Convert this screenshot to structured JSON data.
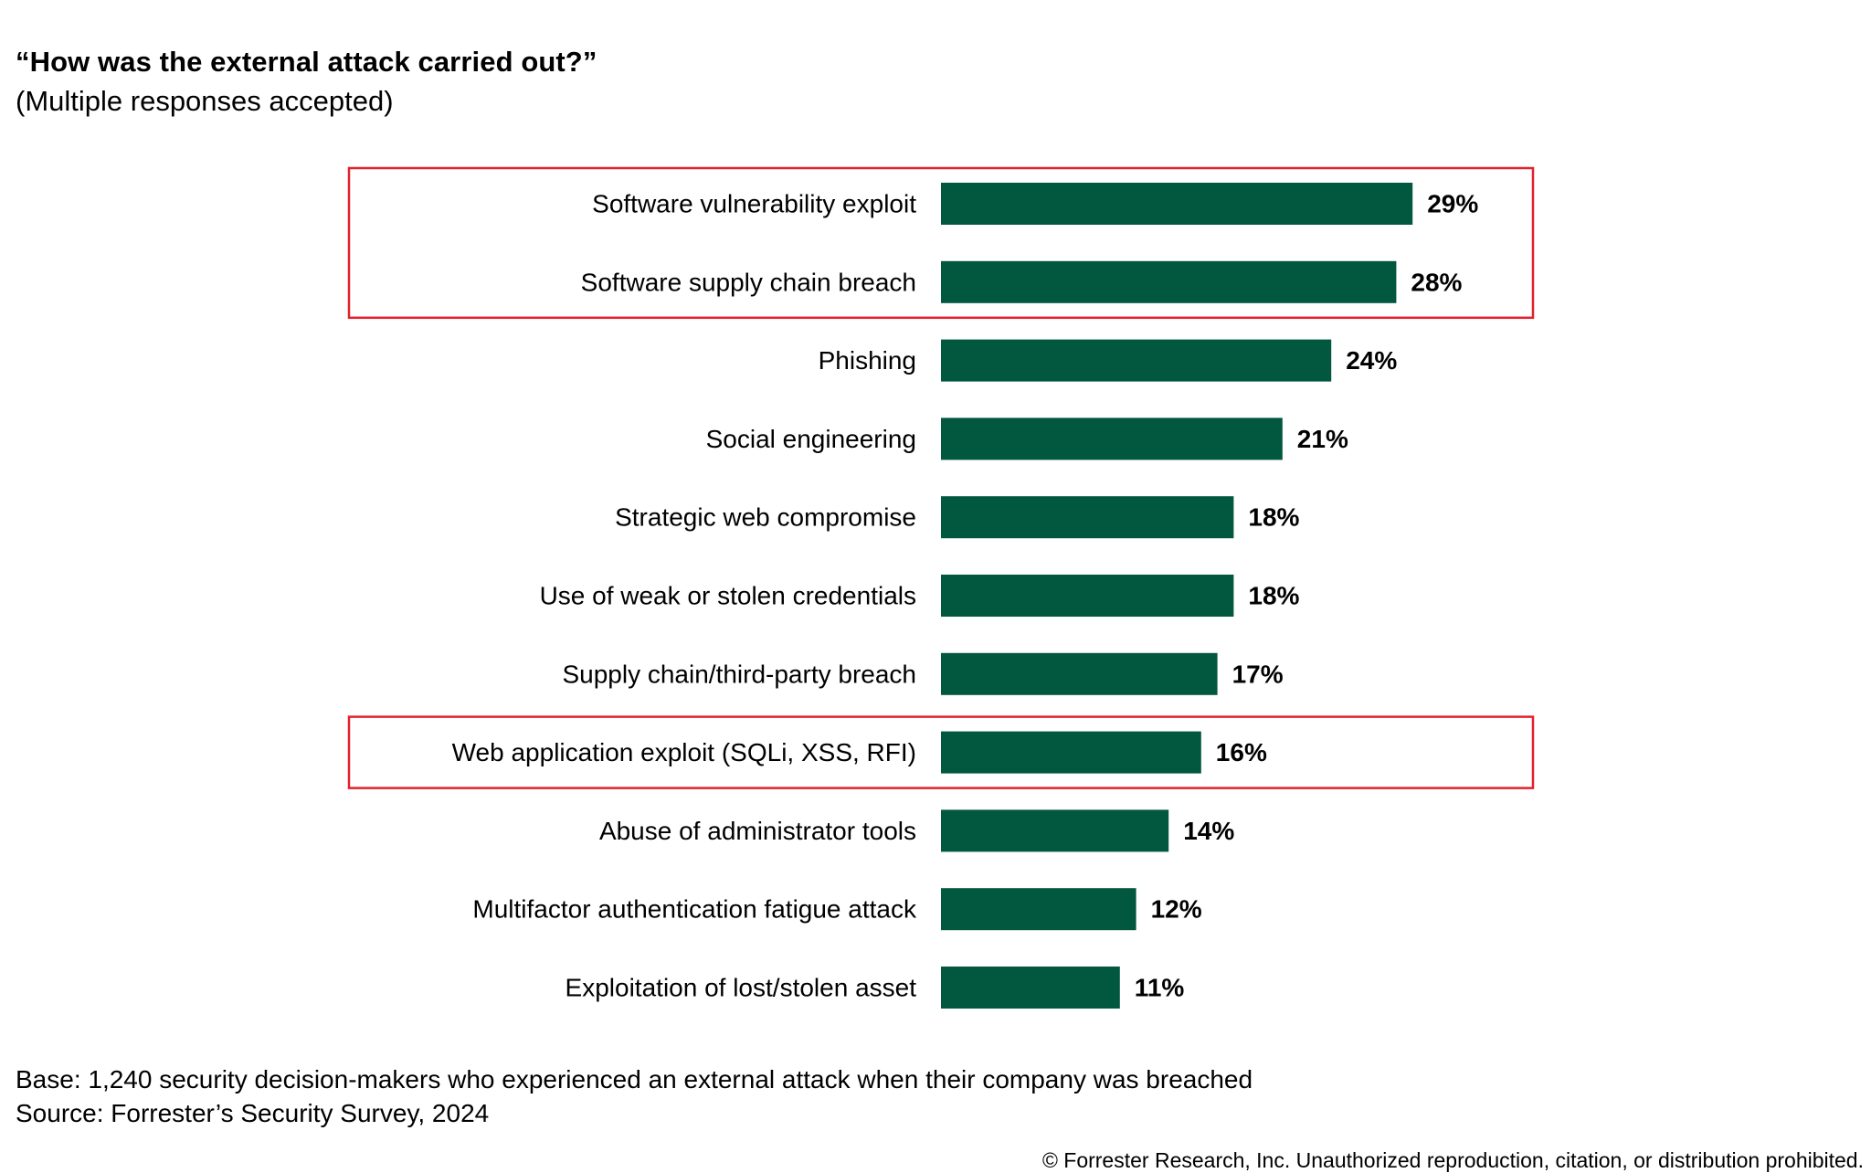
{
  "header": {
    "title": "“How was the external attack carried out?”",
    "subtitle": "(Multiple responses accepted)"
  },
  "chart_data": {
    "type": "bar",
    "orientation": "horizontal",
    "categories": [
      "Software vulnerability exploit",
      "Software supply chain breach",
      "Phishing",
      "Social engineering",
      "Strategic web compromise",
      "Use of weak or stolen credentials",
      "Supply chain/third-party breach",
      "Web application exploit (SQLi, XSS, RFI)",
      "Abuse of administrator tools",
      "Multifactor authentication fatigue attack",
      "Exploitation of lost/stolen asset"
    ],
    "values": [
      29,
      28,
      24,
      21,
      18,
      18,
      17,
      16,
      14,
      12,
      11
    ],
    "value_labels": [
      "29%",
      "28%",
      "24%",
      "21%",
      "18%",
      "18%",
      "17%",
      "16%",
      "14%",
      "12%",
      "11%"
    ],
    "unit": "%",
    "bar_color": "#02573F",
    "highlight_color": "#E3202C",
    "highlight_groups": [
      [
        0,
        1
      ],
      [
        7
      ]
    ]
  },
  "footer": {
    "base": "Base: 1,240 security decision-makers who experienced an external attack when their company was breached",
    "source": "Source: Forrester’s Security Survey, 2024",
    "copyright": "© Forrester Research, Inc. Unauthorized reproduction, citation, or distribution prohibited."
  }
}
